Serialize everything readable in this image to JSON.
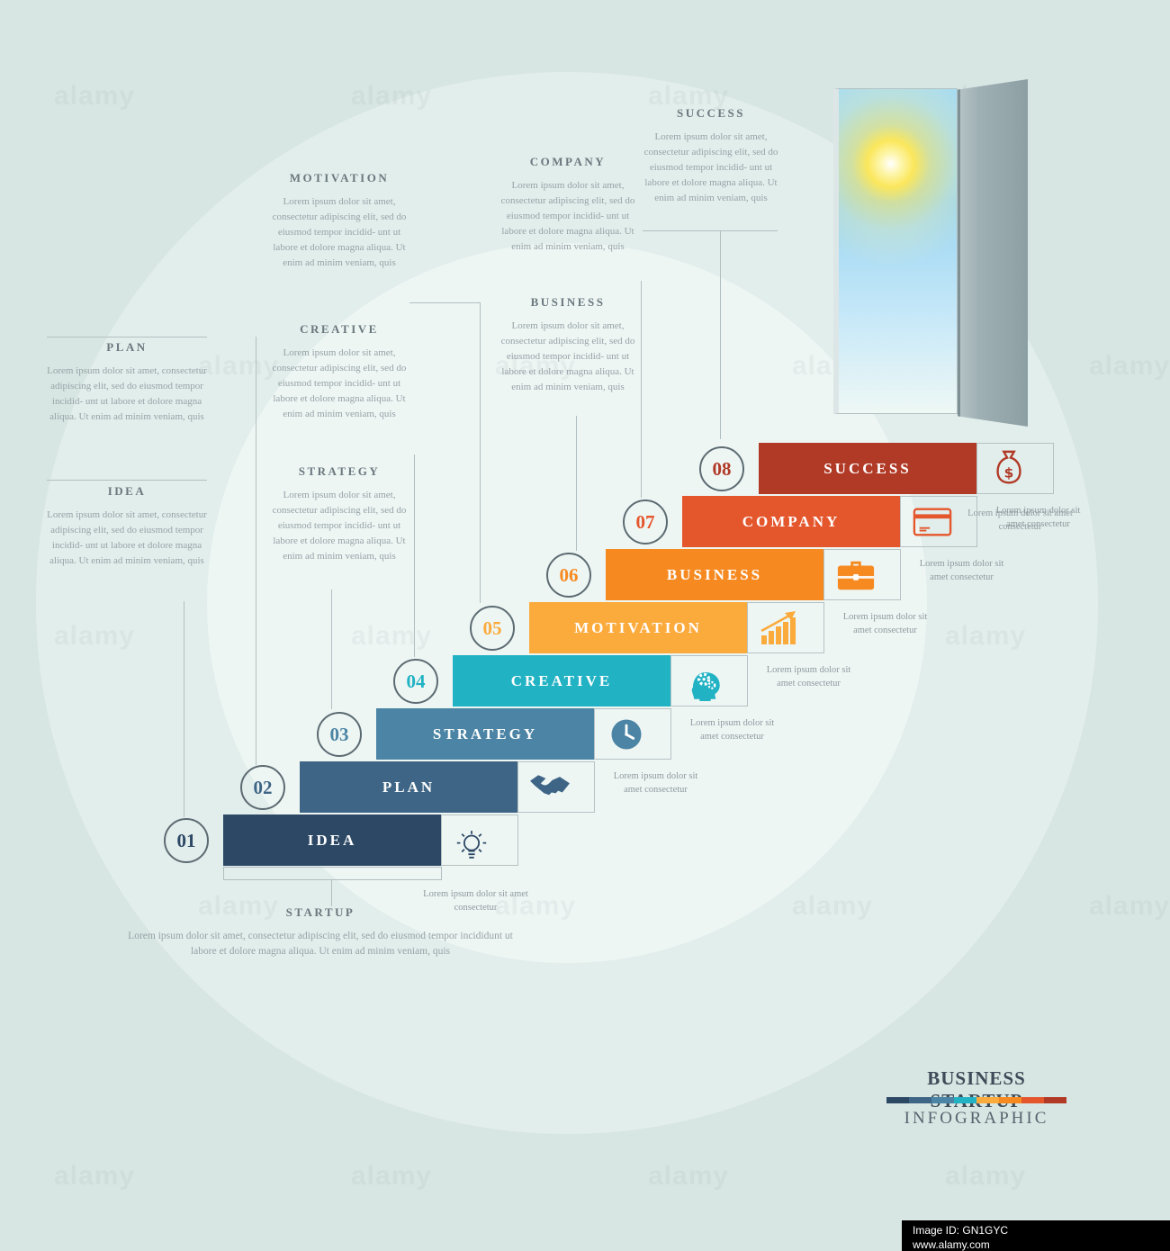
{
  "steps": [
    {
      "num": "01",
      "label": "IDEA",
      "color": "#2c4865",
      "icon": "lightbulb-icon",
      "caption": "Lorem ipsum dolor sit amet consectetur"
    },
    {
      "num": "02",
      "label": "PLAN",
      "color": "#3e6585",
      "icon": "handshake-icon",
      "caption": "Lorem ipsum dolor sit amet consectetur"
    },
    {
      "num": "03",
      "label": "STRATEGY",
      "color": "#4b84a4",
      "icon": "clock-icon",
      "caption": "Lorem ipsum dolor sit amet consectetur"
    },
    {
      "num": "04",
      "label": "CREATIVE",
      "color": "#21b2c3",
      "icon": "head-gears-icon",
      "caption": "Lorem ipsum dolor sit amet consectetur"
    },
    {
      "num": "05",
      "label": "MOTIVATION",
      "color": "#fbaa3c",
      "icon": "growth-chart-icon",
      "caption": "Lorem ipsum dolor sit amet consectetur"
    },
    {
      "num": "06",
      "label": "BUSINESS",
      "color": "#f68a21",
      "icon": "briefcase-icon",
      "caption": "Lorem ipsum dolor sit amet consectetur"
    },
    {
      "num": "07",
      "label": "COMPANY",
      "color": "#e4562c",
      "icon": "credit-card-icon",
      "caption": "Lorem ipsum dolor sit amet consectetur"
    },
    {
      "num": "08",
      "label": "SUCCESS",
      "color": "#b13a27",
      "icon": "money-bag-icon",
      "caption": "Lorem ipsum dolor sit amet consectetur"
    }
  ],
  "notes": {
    "plan": {
      "title": "PLAN",
      "body": "Lorem ipsum dolor sit amet, consectetur adipiscing elit, sed do eiusmod tempor incidid- unt ut labore et dolore magna aliqua. Ut enim ad minim veniam, quis"
    },
    "idea": {
      "title": "IDEA",
      "body": "Lorem ipsum dolor sit amet, consectetur adipiscing elit, sed do eiusmod tempor incidid- unt ut labore et dolore magna aliqua. Ut enim ad minim veniam, quis"
    },
    "motivation": {
      "title": "MOTIVATION",
      "body": "Lorem ipsum dolor sit amet, consectetur adipiscing elit, sed do eiusmod tempor incidid- unt ut labore et dolore magna aliqua. Ut enim ad minim veniam, quis"
    },
    "creative": {
      "title": "CREATIVE",
      "body": "Lorem ipsum dolor sit amet, consectetur adipiscing elit, sed do eiusmod tempor incidid- unt ut labore et dolore magna aliqua. Ut enim ad minim veniam, quis"
    },
    "strategy": {
      "title": "STRATEGY",
      "body": "Lorem ipsum dolor sit amet, consectetur adipiscing elit, sed do eiusmod tempor incidid- unt ut labore et dolore magna aliqua. Ut enim ad minim veniam, quis"
    },
    "company": {
      "title": "COMPANY",
      "body": "Lorem ipsum dolor sit amet, consectetur adipiscing elit, sed do eiusmod tempor incidid- unt ut labore et dolore magna aliqua. Ut enim ad minim veniam, quis"
    },
    "business": {
      "title": "BUSINESS",
      "body": "Lorem ipsum dolor sit amet, consectetur adipiscing elit, sed do eiusmod tempor incidid- unt ut labore et dolore magna aliqua. Ut enim ad minim veniam, quis"
    },
    "success": {
      "title": "SUCCESS",
      "body": "Lorem ipsum dolor sit amet, consectetur adipiscing elit, sed do eiusmod tempor incidid- unt ut labore et dolore magna aliqua. Ut enim ad minim veniam, quis"
    },
    "startup": {
      "title": "STARTUP",
      "body": "Lorem ipsum dolor sit amet, consectetur adipiscing elit, sed do eiusmod tempor incididunt ut labore et dolore magna aliqua. Ut enim ad minim veniam, quis"
    }
  },
  "footer": {
    "title": "BUSINESS STARTUP",
    "subtitle": "INFOGRAPHIC"
  },
  "watermark": {
    "brand": "alamy",
    "image_id": "Image ID: GN1GYC",
    "site": "www.alamy.com"
  }
}
